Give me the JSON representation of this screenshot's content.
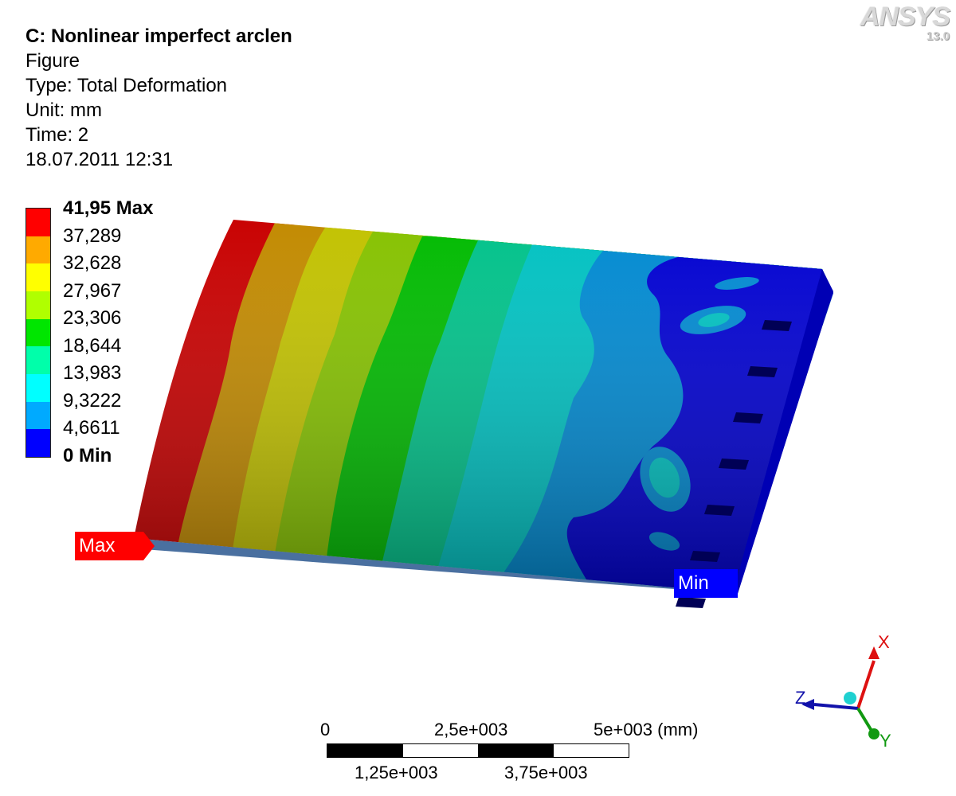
{
  "header": {
    "title": "C: Nonlinear imperfect arclen",
    "subtitle": "Figure",
    "type_line": "Type: Total Deformation",
    "unit_line": "Unit: mm",
    "time_line": "Time: 2",
    "timestamp": "18.07.2011 12:31"
  },
  "logo": {
    "name": "ANSYS",
    "version": "13.0"
  },
  "legend": {
    "labels": [
      "41,95 Max",
      "37,289",
      "32,628",
      "27,967",
      "23,306",
      "18,644",
      "13,983",
      "9,3222",
      "4,6611",
      "0 Min"
    ],
    "colors": [
      "#ff0000",
      "#ffaa00",
      "#ffff00",
      "#b0ff00",
      "#00e600",
      "#00ffaa",
      "#00ffff",
      "#00aaff",
      "#0000ff"
    ]
  },
  "probes": {
    "max_label": "Max",
    "min_label": "Min",
    "max_color": "#ff0000",
    "min_color": "#0000ff"
  },
  "scale_bar": {
    "top_labels": [
      "0",
      "2,5e+003",
      "5e+003 (mm)"
    ],
    "bottom_labels": [
      "1,25e+003",
      "3,75e+003"
    ]
  },
  "triad": {
    "x_label": "X",
    "y_label": "Y",
    "z_label": "Z",
    "x_color": "#dd1111",
    "y_color": "#119911",
    "z_color": "#1111aa"
  }
}
